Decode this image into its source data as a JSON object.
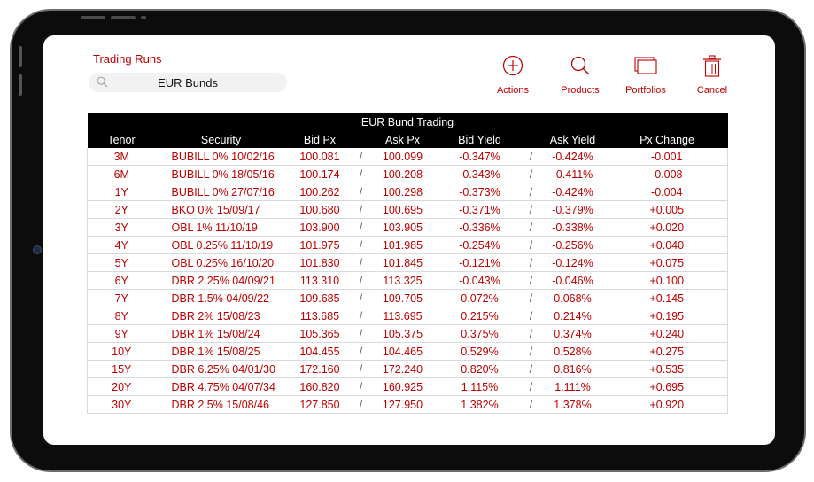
{
  "app": {
    "title": "Trading Runs",
    "search_value": "EUR Bunds"
  },
  "toolbar": {
    "actions": "Actions",
    "products": "Products",
    "portfolios": "Portfolios",
    "cancel": "Cancel"
  },
  "table": {
    "title": "EUR Bund Trading",
    "columns": [
      "Tenor",
      "Security",
      "Bid Px",
      "Ask Px",
      "Bid Yield",
      "Ask Yield",
      "Px Change"
    ],
    "separator": "/",
    "rows": [
      {
        "tenor": "3M",
        "security": "BUBILL 0% 10/02/16",
        "bid_px": "100.081",
        "ask_px": "100.099",
        "bid_yield": "-0.347%",
        "ask_yield": "-0.424%",
        "px_change": "-0.001"
      },
      {
        "tenor": "6M",
        "security": "BUBILL 0% 18/05/16",
        "bid_px": "100.174",
        "ask_px": "100.208",
        "bid_yield": "-0.343%",
        "ask_yield": "-0.411%",
        "px_change": "-0.008"
      },
      {
        "tenor": "1Y",
        "security": "BUBILL 0% 27/07/16",
        "bid_px": "100.262",
        "ask_px": "100.298",
        "bid_yield": "-0.373%",
        "ask_yield": "-0.424%",
        "px_change": "-0.004"
      },
      {
        "tenor": "2Y",
        "security": "BKO 0% 15/09/17",
        "bid_px": "100.680",
        "ask_px": "100.695",
        "bid_yield": "-0.371%",
        "ask_yield": "-0.379%",
        "px_change": "+0.005"
      },
      {
        "tenor": "3Y",
        "security": "OBL 1% 11/10/19",
        "bid_px": "103.900",
        "ask_px": "103.905",
        "bid_yield": "-0.336%",
        "ask_yield": "-0.338%",
        "px_change": "+0.020"
      },
      {
        "tenor": "4Y",
        "security": "OBL 0.25% 11/10/19",
        "bid_px": "101.975",
        "ask_px": "101.985",
        "bid_yield": "-0.254%",
        "ask_yield": "-0.256%",
        "px_change": "+0.040"
      },
      {
        "tenor": "5Y",
        "security": "OBL 0.25% 16/10/20",
        "bid_px": "101.830",
        "ask_px": "101.845",
        "bid_yield": "-0.121%",
        "ask_yield": "-0.124%",
        "px_change": "+0.075"
      },
      {
        "tenor": "6Y",
        "security": "DBR 2.25% 04/09/21",
        "bid_px": "113.310",
        "ask_px": "113.325",
        "bid_yield": "-0.043%",
        "ask_yield": "-0.046%",
        "px_change": "+0.100"
      },
      {
        "tenor": "7Y",
        "security": "DBR 1.5% 04/09/22",
        "bid_px": "109.685",
        "ask_px": "109.705",
        "bid_yield": "0.072%",
        "ask_yield": "0.068%",
        "px_change": "+0.145"
      },
      {
        "tenor": "8Y",
        "security": "DBR 2% 15/08/23",
        "bid_px": "113.685",
        "ask_px": "113.695",
        "bid_yield": "0.215%",
        "ask_yield": "0.214%",
        "px_change": "+0.195"
      },
      {
        "tenor": "9Y",
        "security": "DBR 1% 15/08/24",
        "bid_px": "105.365",
        "ask_px": "105.375",
        "bid_yield": "0.375%",
        "ask_yield": "0.374%",
        "px_change": "+0.240"
      },
      {
        "tenor": "10Y",
        "security": "DBR 1% 15/08/25",
        "bid_px": "104.455",
        "ask_px": "104.465",
        "bid_yield": "0.529%",
        "ask_yield": "0.528%",
        "px_change": "+0.275"
      },
      {
        "tenor": "15Y",
        "security": "DBR 6.25% 04/01/30",
        "bid_px": "172.160",
        "ask_px": "172.240",
        "bid_yield": "0.820%",
        "ask_yield": "0.816%",
        "px_change": "+0.535"
      },
      {
        "tenor": "20Y",
        "security": "DBR 4.75% 04/07/34",
        "bid_px": "160.820",
        "ask_px": "160.925",
        "bid_yield": "1.115%",
        "ask_yield": "1.111%",
        "px_change": "+0.695"
      },
      {
        "tenor": "30Y",
        "security": "DBR 2.5% 15/08/46",
        "bid_px": "127.850",
        "ask_px": "127.950",
        "bid_yield": "1.382%",
        "ask_yield": "1.378%",
        "px_change": "+0.920"
      }
    ]
  },
  "icons": {
    "actions": "plus-circle-icon",
    "products": "search-icon",
    "portfolios": "portfolios-icon",
    "cancel": "trash-icon",
    "search": "search-icon"
  },
  "colors": {
    "accent": "#c00000",
    "header_bg": "#000000",
    "device_frame": "#0c0c0c"
  }
}
